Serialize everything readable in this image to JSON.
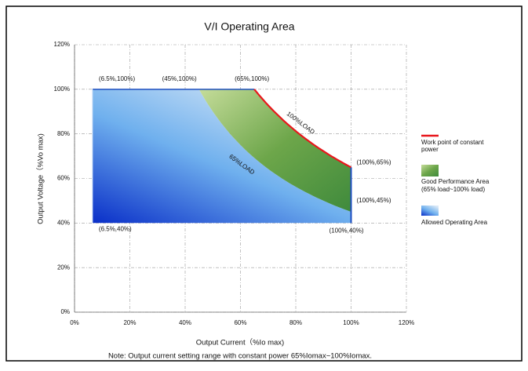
{
  "chart_data": {
    "type": "area",
    "title": "V/I Operating Area",
    "x_label": "Output Current（%Io max)",
    "y_label": "Output Voltage（%Vo max)",
    "note": "Note: Output current setting range with constant power 65%Iomax~100%Iomax.",
    "xlim": [
      0,
      120
    ],
    "ylim": [
      0,
      120
    ],
    "xticks": [
      {
        "value": 0,
        "label": "0%"
      },
      {
        "value": 20,
        "label": "20%"
      },
      {
        "value": 40,
        "label": "40%"
      },
      {
        "value": 60,
        "label": "60%"
      },
      {
        "value": 80,
        "label": "80%"
      },
      {
        "value": 100,
        "label": "100%"
      },
      {
        "value": 120,
        "label": "120%"
      }
    ],
    "yticks": [
      {
        "value": 0,
        "label": "0%"
      },
      {
        "value": 20,
        "label": "20%"
      },
      {
        "value": 40,
        "label": "40%"
      },
      {
        "value": 60,
        "label": "60%"
      },
      {
        "value": 80,
        "label": "80%"
      },
      {
        "value": 100,
        "label": "100%"
      },
      {
        "value": 120,
        "label": "120%"
      }
    ],
    "grid": true,
    "points": [
      {
        "label": "(6.5%,100%)",
        "x": 6.5,
        "y": 100
      },
      {
        "label": "(45%,100%)",
        "x": 45,
        "y": 100
      },
      {
        "label": "(65%,100%)",
        "x": 65,
        "y": 100
      },
      {
        "label": "(100%,65%)",
        "x": 100,
        "y": 65
      },
      {
        "label": "(100%,45%)",
        "x": 100,
        "y": 45
      },
      {
        "label": "(6.5%,40%)",
        "x": 6.5,
        "y": 40
      },
      {
        "label": "(100%,40%)",
        "x": 100,
        "y": 40
      }
    ],
    "curve_labels": [
      "100%LOAD",
      "65%LOAD"
    ],
    "series": [
      {
        "name": "Work point of constant power",
        "name_lines": [
          "Work point of constant",
          "power"
        ],
        "color": "#e8161b"
      },
      {
        "name": "Good Performance Area",
        "name_lines": [
          "Good Performance Area",
          "(65% load~100% load)"
        ],
        "color": "#5c9a3c"
      },
      {
        "name": "Allowed Operating Area",
        "name_lines": [
          "Allowed Operating Area"
        ],
        "color": "#2a62dc"
      }
    ],
    "legend": "right"
  }
}
